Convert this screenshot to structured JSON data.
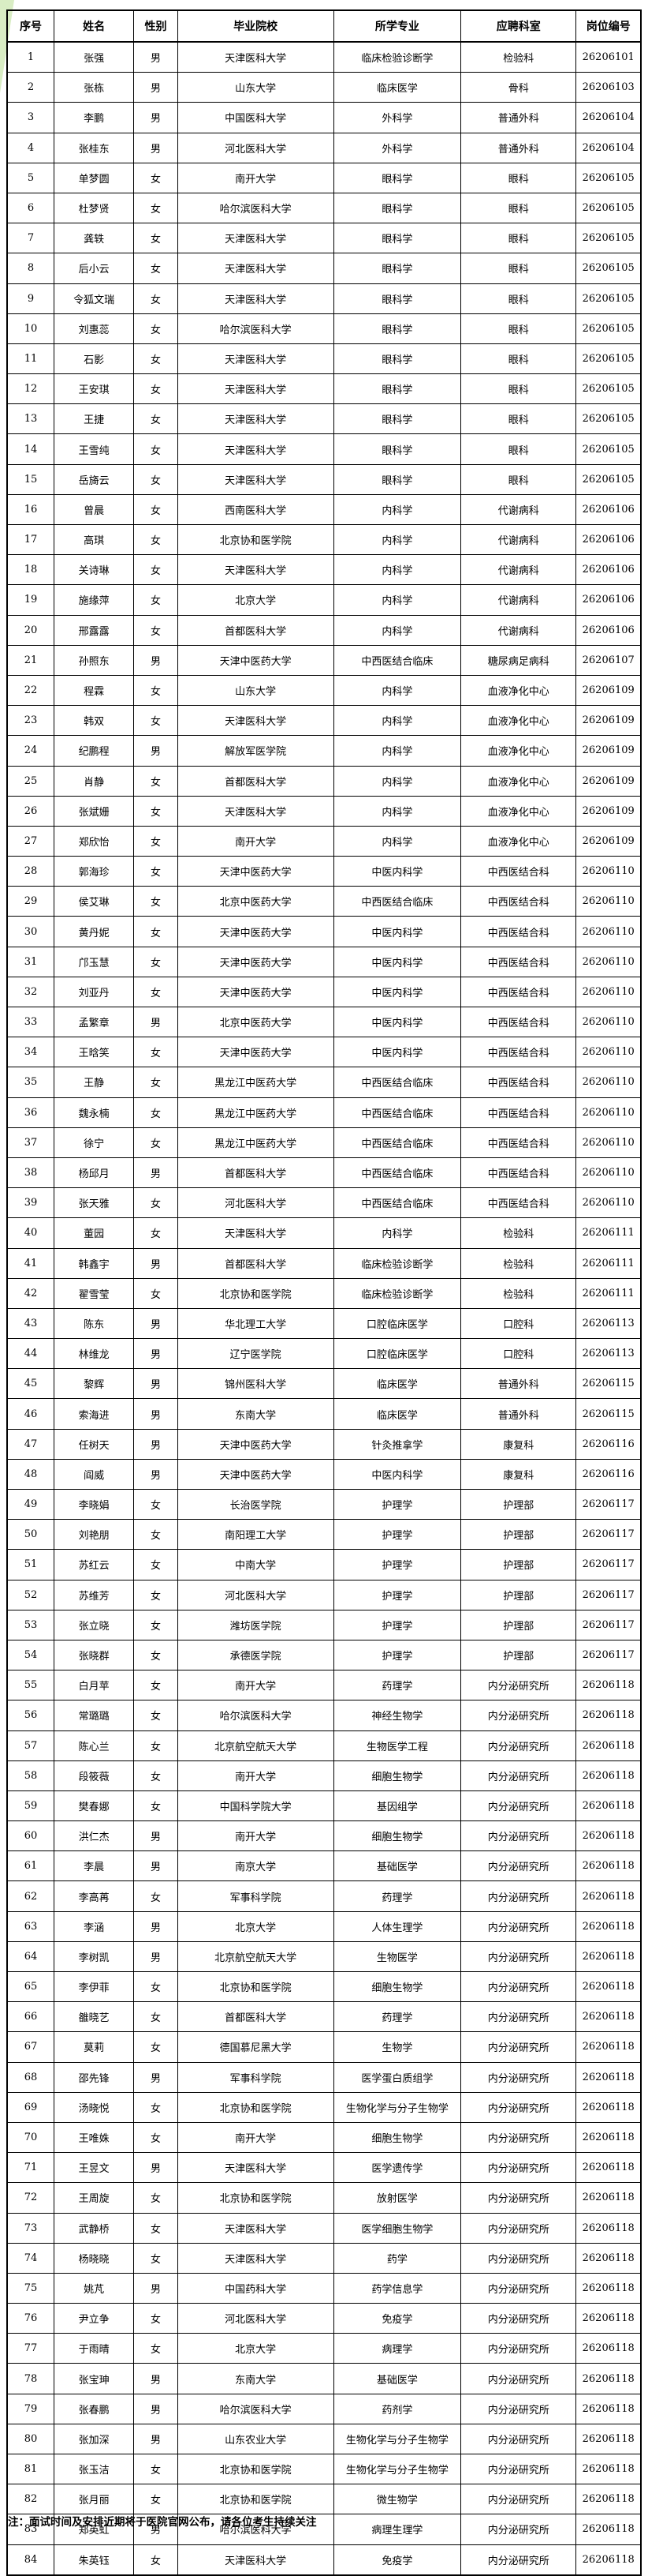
{
  "table": {
    "columns": [
      "序号",
      "姓名",
      "性别",
      "毕业院校",
      "所学专业",
      "应聘科室",
      "岗位编号"
    ],
    "rows": [
      [
        "1",
        "张强",
        "男",
        "天津医科大学",
        "临床检验诊断学",
        "检验科",
        "26206101"
      ],
      [
        "2",
        "张栋",
        "男",
        "山东大学",
        "临床医学",
        "骨科",
        "26206103"
      ],
      [
        "3",
        "李鹏",
        "男",
        "中国医科大学",
        "外科学",
        "普通外科",
        "26206104"
      ],
      [
        "4",
        "张桂东",
        "男",
        "河北医科大学",
        "外科学",
        "普通外科",
        "26206104"
      ],
      [
        "5",
        "单梦圆",
        "女",
        "南开大学",
        "眼科学",
        "眼科",
        "26206105"
      ],
      [
        "6",
        "杜梦贤",
        "女",
        "哈尔滨医科大学",
        "眼科学",
        "眼科",
        "26206105"
      ],
      [
        "7",
        "龚轶",
        "女",
        "天津医科大学",
        "眼科学",
        "眼科",
        "26206105"
      ],
      [
        "8",
        "后小云",
        "女",
        "天津医科大学",
        "眼科学",
        "眼科",
        "26206105"
      ],
      [
        "9",
        "令狐文瑞",
        "女",
        "天津医科大学",
        "眼科学",
        "眼科",
        "26206105"
      ],
      [
        "10",
        "刘惠蕊",
        "女",
        "哈尔滨医科大学",
        "眼科学",
        "眼科",
        "26206105"
      ],
      [
        "11",
        "石影",
        "女",
        "天津医科大学",
        "眼科学",
        "眼科",
        "26206105"
      ],
      [
        "12",
        "王安琪",
        "女",
        "天津医科大学",
        "眼科学",
        "眼科",
        "26206105"
      ],
      [
        "13",
        "王捷",
        "女",
        "天津医科大学",
        "眼科学",
        "眼科",
        "26206105"
      ],
      [
        "14",
        "王雪纯",
        "女",
        "天津医科大学",
        "眼科学",
        "眼科",
        "26206105"
      ],
      [
        "15",
        "岳旖云",
        "女",
        "天津医科大学",
        "眼科学",
        "眼科",
        "26206105"
      ],
      [
        "16",
        "曾晨",
        "女",
        "西南医科大学",
        "内科学",
        "代谢病科",
        "26206106"
      ],
      [
        "17",
        "高琪",
        "女",
        "北京协和医学院",
        "内科学",
        "代谢病科",
        "26206106"
      ],
      [
        "18",
        "关诗琳",
        "女",
        "天津医科大学",
        "内科学",
        "代谢病科",
        "26206106"
      ],
      [
        "19",
        "施缘萍",
        "女",
        "北京大学",
        "内科学",
        "代谢病科",
        "26206106"
      ],
      [
        "20",
        "邢露露",
        "女",
        "首都医科大学",
        "内科学",
        "代谢病科",
        "26206106"
      ],
      [
        "21",
        "孙照东",
        "男",
        "天津中医药大学",
        "中西医结合临床",
        "糖尿病足病科",
        "26206107"
      ],
      [
        "22",
        "程霖",
        "女",
        "山东大学",
        "内科学",
        "血液净化中心",
        "26206109"
      ],
      [
        "23",
        "韩双",
        "女",
        "天津医科大学",
        "内科学",
        "血液净化中心",
        "26206109"
      ],
      [
        "24",
        "纪鹏程",
        "男",
        "解放军医学院",
        "内科学",
        "血液净化中心",
        "26206109"
      ],
      [
        "25",
        "肖静",
        "女",
        "首都医科大学",
        "内科学",
        "血液净化中心",
        "26206109"
      ],
      [
        "26",
        "张斌姗",
        "女",
        "天津医科大学",
        "内科学",
        "血液净化中心",
        "26206109"
      ],
      [
        "27",
        "郑欣怡",
        "女",
        "南开大学",
        "内科学",
        "血液净化中心",
        "26206109"
      ],
      [
        "28",
        "郭海珍",
        "女",
        "天津中医药大学",
        "中医内科学",
        "中西医结合科",
        "26206110"
      ],
      [
        "29",
        "侯艾琳",
        "女",
        "北京中医药大学",
        "中西医结合临床",
        "中西医结合科",
        "26206110"
      ],
      [
        "30",
        "黄丹妮",
        "女",
        "天津中医药大学",
        "中医内科学",
        "中西医结合科",
        "26206110"
      ],
      [
        "31",
        "邝玉慧",
        "女",
        "天津中医药大学",
        "中医内科学",
        "中西医结合科",
        "26206110"
      ],
      [
        "32",
        "刘亚丹",
        "女",
        "天津中医药大学",
        "中医内科学",
        "中西医结合科",
        "26206110"
      ],
      [
        "33",
        "孟繁章",
        "男",
        "北京中医药大学",
        "中医内科学",
        "中西医结合科",
        "26206110"
      ],
      [
        "34",
        "王晗笑",
        "女",
        "天津中医药大学",
        "中医内科学",
        "中西医结合科",
        "26206110"
      ],
      [
        "35",
        "王静",
        "女",
        "黑龙江中医药大学",
        "中西医结合临床",
        "中西医结合科",
        "26206110"
      ],
      [
        "36",
        "魏永楠",
        "女",
        "黑龙江中医药大学",
        "中西医结合临床",
        "中西医结合科",
        "26206110"
      ],
      [
        "37",
        "徐宁",
        "女",
        "黑龙江中医药大学",
        "中西医结合临床",
        "中西医结合科",
        "26206110"
      ],
      [
        "38",
        "杨邱月",
        "男",
        "首都医科大学",
        "中西医结合临床",
        "中西医结合科",
        "26206110"
      ],
      [
        "39",
        "张天雅",
        "女",
        "河北医科大学",
        "中西医结合临床",
        "中西医结合科",
        "26206110"
      ],
      [
        "40",
        "董园",
        "女",
        "天津医科大学",
        "内科学",
        "检验科",
        "26206111"
      ],
      [
        "41",
        "韩鑫宇",
        "男",
        "首都医科大学",
        "临床检验诊断学",
        "检验科",
        "26206111"
      ],
      [
        "42",
        "翟雪莹",
        "女",
        "北京协和医学院",
        "临床检验诊断学",
        "检验科",
        "26206111"
      ],
      [
        "43",
        "陈东",
        "男",
        "华北理工大学",
        "口腔临床医学",
        "口腔科",
        "26206113"
      ],
      [
        "44",
        "林维龙",
        "男",
        "辽宁医学院",
        "口腔临床医学",
        "口腔科",
        "26206113"
      ],
      [
        "45",
        "黎辉",
        "男",
        "锦州医科大学",
        "临床医学",
        "普通外科",
        "26206115"
      ],
      [
        "46",
        "索海进",
        "男",
        "东南大学",
        "临床医学",
        "普通外科",
        "26206115"
      ],
      [
        "47",
        "任树天",
        "男",
        "天津中医药大学",
        "针灸推拿学",
        "康复科",
        "26206116"
      ],
      [
        "48",
        "阎威",
        "男",
        "天津中医药大学",
        "中医内科学",
        "康复科",
        "26206116"
      ],
      [
        "49",
        "李晓娟",
        "女",
        "长治医学院",
        "护理学",
        "护理部",
        "26206117"
      ],
      [
        "50",
        "刘艳朋",
        "女",
        "南阳理工大学",
        "护理学",
        "护理部",
        "26206117"
      ],
      [
        "51",
        "苏红云",
        "女",
        "中南大学",
        "护理学",
        "护理部",
        "26206117"
      ],
      [
        "52",
        "苏维芳",
        "女",
        "河北医科大学",
        "护理学",
        "护理部",
        "26206117"
      ],
      [
        "53",
        "张立晓",
        "女",
        "潍坊医学院",
        "护理学",
        "护理部",
        "26206117"
      ],
      [
        "54",
        "张晓群",
        "女",
        "承德医学院",
        "护理学",
        "护理部",
        "26206117"
      ],
      [
        "55",
        "白月苹",
        "女",
        "南开大学",
        "药理学",
        "内分泌研究所",
        "26206118"
      ],
      [
        "56",
        "常璐璐",
        "女",
        "哈尔滨医科大学",
        "神经生物学",
        "内分泌研究所",
        "26206118"
      ],
      [
        "57",
        "陈心兰",
        "女",
        "北京航空航天大学",
        "生物医学工程",
        "内分泌研究所",
        "26206118"
      ],
      [
        "58",
        "段筱薇",
        "女",
        "南开大学",
        "细胞生物学",
        "内分泌研究所",
        "26206118"
      ],
      [
        "59",
        "樊春娜",
        "女",
        "中国科学院大学",
        "基因组学",
        "内分泌研究所",
        "26206118"
      ],
      [
        "60",
        "洪仁杰",
        "男",
        "南开大学",
        "细胞生物学",
        "内分泌研究所",
        "26206118"
      ],
      [
        "61",
        "李晨",
        "男",
        "南京大学",
        "基础医学",
        "内分泌研究所",
        "26206118"
      ],
      [
        "62",
        "李高苒",
        "女",
        "军事科学院",
        "药理学",
        "内分泌研究所",
        "26206118"
      ],
      [
        "63",
        "李涵",
        "男",
        "北京大学",
        "人体生理学",
        "内分泌研究所",
        "26206118"
      ],
      [
        "64",
        "李树凯",
        "男",
        "北京航空航天大学",
        "生物医学",
        "内分泌研究所",
        "26206118"
      ],
      [
        "65",
        "李伊菲",
        "女",
        "北京协和医学院",
        "细胞生物学",
        "内分泌研究所",
        "26206118"
      ],
      [
        "66",
        "雒晓艺",
        "女",
        "首都医科大学",
        "药理学",
        "内分泌研究所",
        "26206118"
      ],
      [
        "67",
        "莫莉",
        "女",
        "德国慕尼黑大学",
        "生物学",
        "内分泌研究所",
        "26206118"
      ],
      [
        "68",
        "邵先锋",
        "男",
        "军事科学院",
        "医学蛋白质组学",
        "内分泌研究所",
        "26206118"
      ],
      [
        "69",
        "汤晓悦",
        "女",
        "北京协和医学院",
        "生物化学与分子生物学",
        "内分泌研究所",
        "26206118"
      ],
      [
        "70",
        "王唯姝",
        "女",
        "南开大学",
        "细胞生物学",
        "内分泌研究所",
        "26206118"
      ],
      [
        "71",
        "王昱文",
        "男",
        "天津医科大学",
        "医学遗传学",
        "内分泌研究所",
        "26206118"
      ],
      [
        "72",
        "王周旋",
        "女",
        "北京协和医学院",
        "放射医学",
        "内分泌研究所",
        "26206118"
      ],
      [
        "73",
        "武静桥",
        "女",
        "天津医科大学",
        "医学细胞生物学",
        "内分泌研究所",
        "26206118"
      ],
      [
        "74",
        "杨晓晓",
        "女",
        "天津医科大学",
        "药学",
        "内分泌研究所",
        "26206118"
      ],
      [
        "75",
        "姚芃",
        "男",
        "中国药科大学",
        "药学信息学",
        "内分泌研究所",
        "26206118"
      ],
      [
        "76",
        "尹立争",
        "女",
        "河北医科大学",
        "免疫学",
        "内分泌研究所",
        "26206118"
      ],
      [
        "77",
        "于雨晴",
        "女",
        "北京大学",
        "病理学",
        "内分泌研究所",
        "26206118"
      ],
      [
        "78",
        "张宝珅",
        "男",
        "东南大学",
        "基础医学",
        "内分泌研究所",
        "26206118"
      ],
      [
        "79",
        "张春鹏",
        "男",
        "哈尔滨医科大学",
        "药剂学",
        "内分泌研究所",
        "26206118"
      ],
      [
        "80",
        "张加深",
        "男",
        "山东农业大学",
        "生物化学与分子生物学",
        "内分泌研究所",
        "26206118"
      ],
      [
        "81",
        "张玉洁",
        "女",
        "北京协和医学院",
        "生物化学与分子生物学",
        "内分泌研究所",
        "26206118"
      ],
      [
        "82",
        "张月丽",
        "女",
        "北京协和医学院",
        "微生物学",
        "内分泌研究所",
        "26206118"
      ],
      [
        "83",
        "郑英虹",
        "男",
        "哈尔滨医科大学",
        "病理生理学",
        "内分泌研究所",
        "26206118"
      ],
      [
        "84",
        "朱英钰",
        "女",
        "天津医科大学",
        "免疫学",
        "内分泌研究所",
        "26206118"
      ]
    ]
  },
  "footer": {
    "note": "注：面试时间及安排近期将于医院官网公布，请各位考生持续关注"
  },
  "colors": {
    "border": "#000000",
    "background": "#ffffff",
    "corner_decoration": "#d9edc4"
  }
}
